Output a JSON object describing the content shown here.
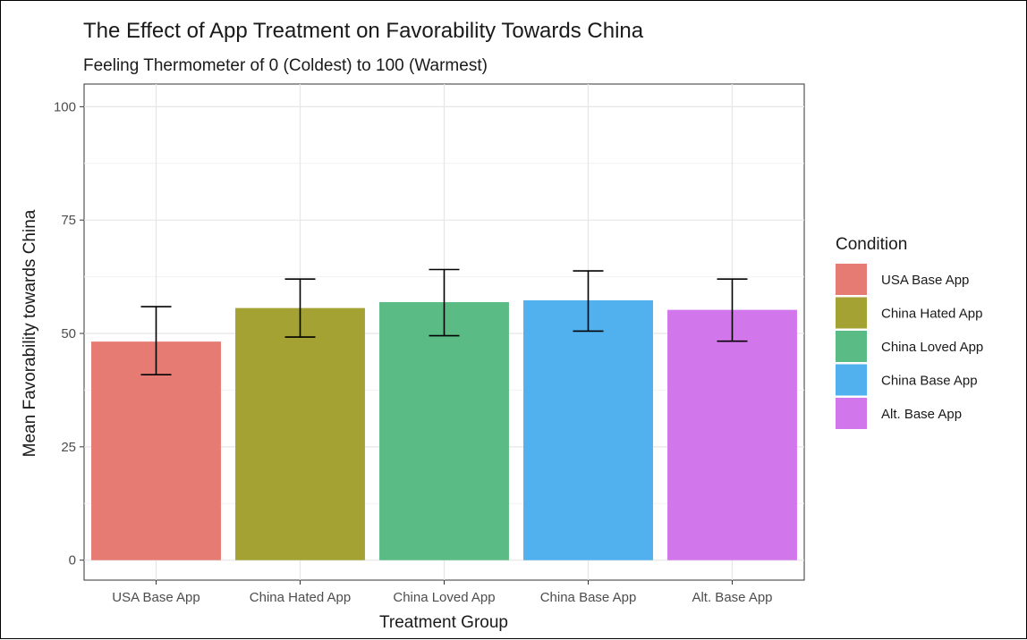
{
  "chart_data": {
    "type": "bar",
    "title": "The Effect of App Treatment on Favorability Towards China",
    "subtitle": "Feeling Thermometer of 0 (Coldest) to 100 (Warmest)",
    "xlabel": "Treatment Group",
    "ylabel": "Mean Favorability towards China",
    "ylim": [
      0,
      105
    ],
    "yticks": [
      0,
      25,
      50,
      75,
      100
    ],
    "categories": [
      "USA Base App",
      "China Hated App",
      "China Loved App",
      "China Base App",
      "Alt. Base App"
    ],
    "values": [
      48.2,
      55.6,
      56.9,
      57.3,
      55.2
    ],
    "error_low": [
      40.9,
      49.2,
      49.5,
      50.5,
      48.3
    ],
    "error_high": [
      55.9,
      62.0,
      64.1,
      63.8,
      62.0
    ],
    "colors": [
      "#e57b73",
      "#a3a233",
      "#5bbb84",
      "#51b0ee",
      "#d277eb"
    ],
    "grid": true,
    "legend": {
      "title": "Condition",
      "position": "right",
      "entries": [
        "USA Base App",
        "China Hated App",
        "China Loved App",
        "China Base App",
        "Alt. Base App"
      ]
    }
  }
}
